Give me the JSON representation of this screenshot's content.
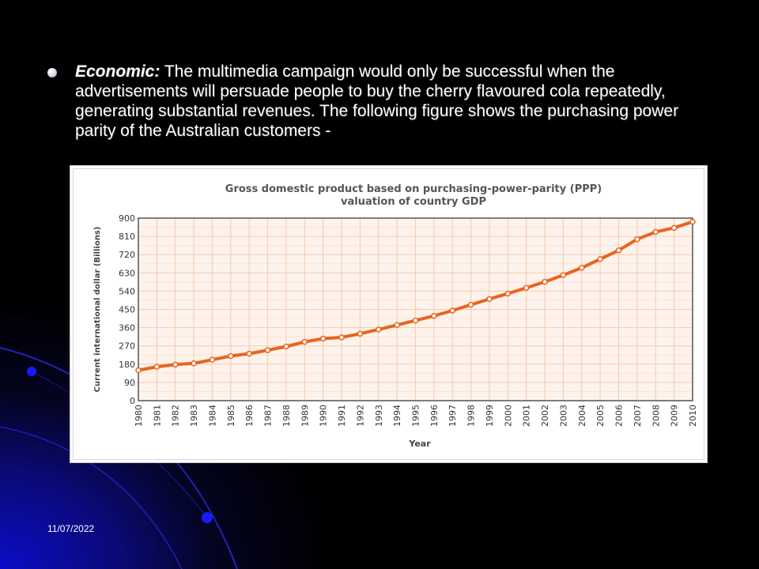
{
  "slide": {
    "bullet": {
      "lead": "Economic:",
      "text": " The multimedia campaign would only be successful when the advertisements will persuade people to buy the cherry flavoured cola repeatedly, generating substantial revenues. The following figure shows the purchasing power parity of the Australian customers -"
    },
    "footer_date": "11/07/2022"
  },
  "colors": {
    "background": "#000000",
    "accent_blue": "#1a1aff",
    "line": "#e8641e",
    "grid": "#f7c9ad",
    "plot_bg": "#fdf3ec"
  },
  "chart_data": {
    "type": "line",
    "title": "Gross domestic product based on purchasing-power-parity (PPP) valuation of country GDP",
    "title_lines": [
      "Gross domestic product based on purchasing-power-parity (PPP)",
      "valuation of country GDP"
    ],
    "xlabel": "Year",
    "ylabel": "Current international dollar (Billions)",
    "ylim": [
      0,
      900
    ],
    "yticks": [
      "0",
      "90",
      "180",
      "270",
      "360",
      "450",
      "540",
      "630",
      "720",
      "810",
      "900"
    ],
    "grid": true,
    "x": [
      "1980",
      "1981",
      "1982",
      "1983",
      "1984",
      "1985",
      "1986",
      "1987",
      "1988",
      "1989",
      "1990",
      "1991",
      "1992",
      "1993",
      "1994",
      "1995",
      "1996",
      "1997",
      "1998",
      "1999",
      "2000",
      "2001",
      "2002",
      "2003",
      "2004",
      "2005",
      "2006",
      "2007",
      "2008",
      "2009",
      "2010"
    ],
    "series": [
      {
        "values": [
          150,
          167,
          178,
          184,
          202,
          220,
          232,
          249,
          267,
          290,
          306,
          312,
          330,
          351,
          373,
          395,
          418,
          444,
          473,
          501,
          528,
          556,
          586,
          619,
          655,
          698,
          741,
          796,
          832,
          852,
          882
        ]
      }
    ]
  }
}
